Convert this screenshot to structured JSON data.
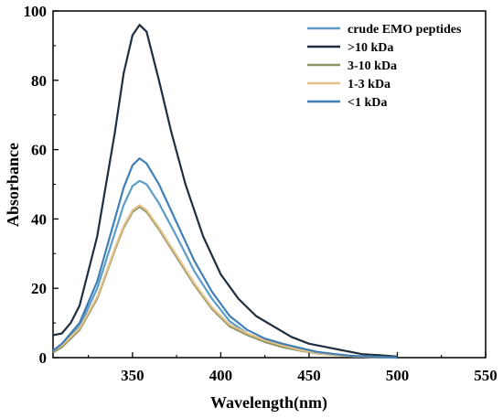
{
  "chart_data": {
    "type": "line",
    "title": "",
    "xlabel": "Wavelength(nm)",
    "ylabel": "Absorbance",
    "xlim": [
      305,
      550
    ],
    "ylim": [
      0,
      100
    ],
    "x_ticks": [
      350,
      400,
      450,
      500,
      550
    ],
    "y_ticks": [
      0,
      20,
      40,
      60,
      80,
      100
    ],
    "grid": false,
    "legend_position": "top-right",
    "series": [
      {
        "name": "crude EMO peptides",
        "color": "#5b9cc8",
        "points": [
          [
            305,
            2
          ],
          [
            310,
            3.5
          ],
          [
            320,
            9
          ],
          [
            330,
            20
          ],
          [
            340,
            36
          ],
          [
            345,
            44
          ],
          [
            350,
            49.5
          ],
          [
            354,
            51
          ],
          [
            358,
            50
          ],
          [
            365,
            44.5
          ],
          [
            375,
            35
          ],
          [
            385,
            25
          ],
          [
            395,
            17
          ],
          [
            405,
            10.5
          ],
          [
            415,
            7
          ],
          [
            425,
            4.5
          ],
          [
            435,
            3.5
          ],
          [
            445,
            2.5
          ],
          [
            455,
            1.3
          ],
          [
            465,
            0.8
          ],
          [
            475,
            0.4
          ],
          [
            485,
            0.2
          ],
          [
            495,
            0.1
          ],
          [
            500,
            0
          ]
        ]
      },
      {
        "name": ">10 kDa",
        "color": "#1f2f3f",
        "points": [
          [
            305,
            6.5
          ],
          [
            310,
            7
          ],
          [
            315,
            10
          ],
          [
            320,
            15
          ],
          [
            330,
            35
          ],
          [
            340,
            65
          ],
          [
            345,
            82
          ],
          [
            350,
            93
          ],
          [
            354,
            96
          ],
          [
            358,
            94
          ],
          [
            365,
            80
          ],
          [
            372,
            65
          ],
          [
            380,
            50
          ],
          [
            390,
            35
          ],
          [
            400,
            24
          ],
          [
            410,
            17
          ],
          [
            420,
            12
          ],
          [
            430,
            9
          ],
          [
            440,
            6
          ],
          [
            450,
            4
          ],
          [
            460,
            3
          ],
          [
            470,
            2
          ],
          [
            480,
            1
          ],
          [
            490,
            0.7
          ],
          [
            500,
            0.3
          ]
        ]
      },
      {
        "name": "3-10 kDa",
        "color": "#8c9461",
        "points": [
          [
            305,
            1.5
          ],
          [
            310,
            3
          ],
          [
            320,
            8
          ],
          [
            330,
            17
          ],
          [
            340,
            31
          ],
          [
            345,
            37.5
          ],
          [
            350,
            42
          ],
          [
            354,
            43.5
          ],
          [
            358,
            42
          ],
          [
            365,
            37
          ],
          [
            375,
            29
          ],
          [
            385,
            21
          ],
          [
            395,
            14
          ],
          [
            405,
            9
          ],
          [
            415,
            6.5
          ],
          [
            425,
            4.5
          ],
          [
            435,
            3
          ],
          [
            445,
            2
          ],
          [
            455,
            1.2
          ],
          [
            465,
            0.7
          ],
          [
            475,
            0.4
          ],
          [
            485,
            0.2
          ],
          [
            495,
            0.1
          ],
          [
            500,
            0
          ]
        ]
      },
      {
        "name": "1-3 kDa",
        "color": "#e6c28a",
        "points": [
          [
            305,
            2
          ],
          [
            310,
            3.5
          ],
          [
            320,
            8.5
          ],
          [
            330,
            17.5
          ],
          [
            340,
            31.5
          ],
          [
            345,
            38
          ],
          [
            350,
            42.5
          ],
          [
            354,
            44
          ],
          [
            358,
            42.5
          ],
          [
            365,
            37.5
          ],
          [
            375,
            29.5
          ],
          [
            385,
            21.5
          ],
          [
            395,
            14.5
          ],
          [
            405,
            9.5
          ],
          [
            415,
            7
          ],
          [
            425,
            5
          ],
          [
            435,
            3.5
          ],
          [
            445,
            2.2
          ],
          [
            455,
            1.3
          ],
          [
            465,
            0.8
          ],
          [
            475,
            0.4
          ],
          [
            485,
            0.2
          ],
          [
            495,
            0.1
          ],
          [
            500,
            0
          ]
        ]
      },
      {
        "name": "<1 kDa",
        "color": "#3f7fb5",
        "points": [
          [
            305,
            2
          ],
          [
            310,
            4
          ],
          [
            320,
            10
          ],
          [
            330,
            22
          ],
          [
            340,
            40
          ],
          [
            345,
            49
          ],
          [
            350,
            55.5
          ],
          [
            354,
            57.5
          ],
          [
            358,
            56
          ],
          [
            365,
            50
          ],
          [
            375,
            39
          ],
          [
            385,
            28
          ],
          [
            395,
            19
          ],
          [
            405,
            12
          ],
          [
            415,
            8
          ],
          [
            425,
            5.5
          ],
          [
            435,
            4
          ],
          [
            445,
            2.8
          ],
          [
            455,
            1.6
          ],
          [
            465,
            1
          ],
          [
            475,
            0.5
          ],
          [
            485,
            0.3
          ],
          [
            495,
            0.1
          ],
          [
            500,
            0
          ]
        ]
      }
    ]
  }
}
